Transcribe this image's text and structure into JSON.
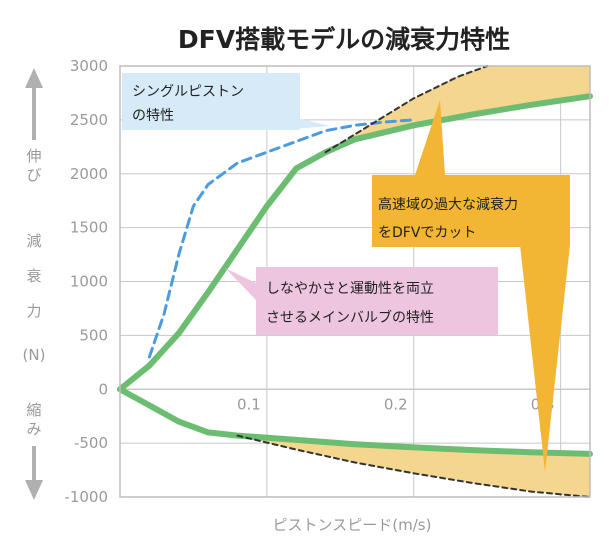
{
  "chart_data": {
    "type": "line",
    "title": "DFV搭載モデルの減衰力特性",
    "xlabel": "ピストンスピード(m/s)",
    "ylabel": [
      "減",
      "衰",
      "力",
      "(N)"
    ],
    "ylabel_top": [
      "伸",
      "び"
    ],
    "ylabel_bottom": [
      "縮",
      "み"
    ],
    "xlim": [
      0,
      0.32
    ],
    "ylim": [
      -1000,
      3000
    ],
    "xticks": [
      "0.1",
      "0.2",
      "0.3"
    ],
    "xtick_values": [
      0.1,
      0.2,
      0.3
    ],
    "yticks": [
      "3000",
      "2500",
      "2000",
      "1500",
      "1000",
      "500",
      "0",
      "-500",
      "-1000"
    ],
    "ytick_values": [
      3000,
      2500,
      2000,
      1500,
      1000,
      500,
      0,
      -500,
      -1000
    ],
    "grid": true,
    "series": [
      {
        "name": "main_valve_extension",
        "color": "#6cbd72",
        "style": "solid",
        "x": [
          0,
          0.02,
          0.04,
          0.06,
          0.08,
          0.1,
          0.12,
          0.14,
          0.16,
          0.2,
          0.24,
          0.28,
          0.32
        ],
        "y": [
          0,
          220,
          520,
          900,
          1300,
          1700,
          2050,
          2200,
          2320,
          2450,
          2550,
          2640,
          2720
        ]
      },
      {
        "name": "main_valve_compression",
        "color": "#6cbd72",
        "style": "solid",
        "x": [
          0,
          0.02,
          0.04,
          0.06,
          0.08,
          0.12,
          0.16,
          0.2,
          0.24,
          0.28,
          0.32
        ],
        "y": [
          0,
          -150,
          -300,
          -400,
          -430,
          -470,
          -510,
          -540,
          -565,
          -585,
          -600
        ]
      },
      {
        "name": "single_piston",
        "color": "#4a9be0",
        "style": "dashed",
        "x": [
          0.02,
          0.03,
          0.04,
          0.05,
          0.06,
          0.07,
          0.08,
          0.1,
          0.12,
          0.14,
          0.16,
          0.18,
          0.2
        ],
        "y": [
          300,
          700,
          1250,
          1700,
          1900,
          2000,
          2100,
          2200,
          2300,
          2400,
          2450,
          2480,
          2500
        ]
      },
      {
        "name": "conventional_extension",
        "color": "#333333",
        "style": "dashed",
        "x": [
          0.14,
          0.17,
          0.2,
          0.23,
          0.25
        ],
        "y": [
          2200,
          2450,
          2700,
          2900,
          3000
        ]
      },
      {
        "name": "conventional_compression",
        "color": "#333333",
        "style": "dashed",
        "x": [
          0.08,
          0.12,
          0.16,
          0.2,
          0.24,
          0.28,
          0.32
        ],
        "y": [
          -430,
          -560,
          -680,
          -780,
          -870,
          -950,
          -1000
        ]
      }
    ],
    "annotations": {
      "single_piston": [
        "シングルピストン",
        "の特性"
      ],
      "high_speed_cut": [
        "高速域の過大な減衰力",
        "をDFVでカット"
      ],
      "main_valve": [
        "しなやかさと運動性を両立",
        "させるメインバルブの特性"
      ]
    },
    "colors": {
      "green": "#6cbd72",
      "blue": "#4a9be0",
      "fill": "#f5d68e",
      "pink_box": "#edc5de",
      "blue_box": "#d6ebf7",
      "gold": "#f2b534",
      "grid": "#c8c8c8",
      "axis_text": "#9a9a9a"
    }
  }
}
